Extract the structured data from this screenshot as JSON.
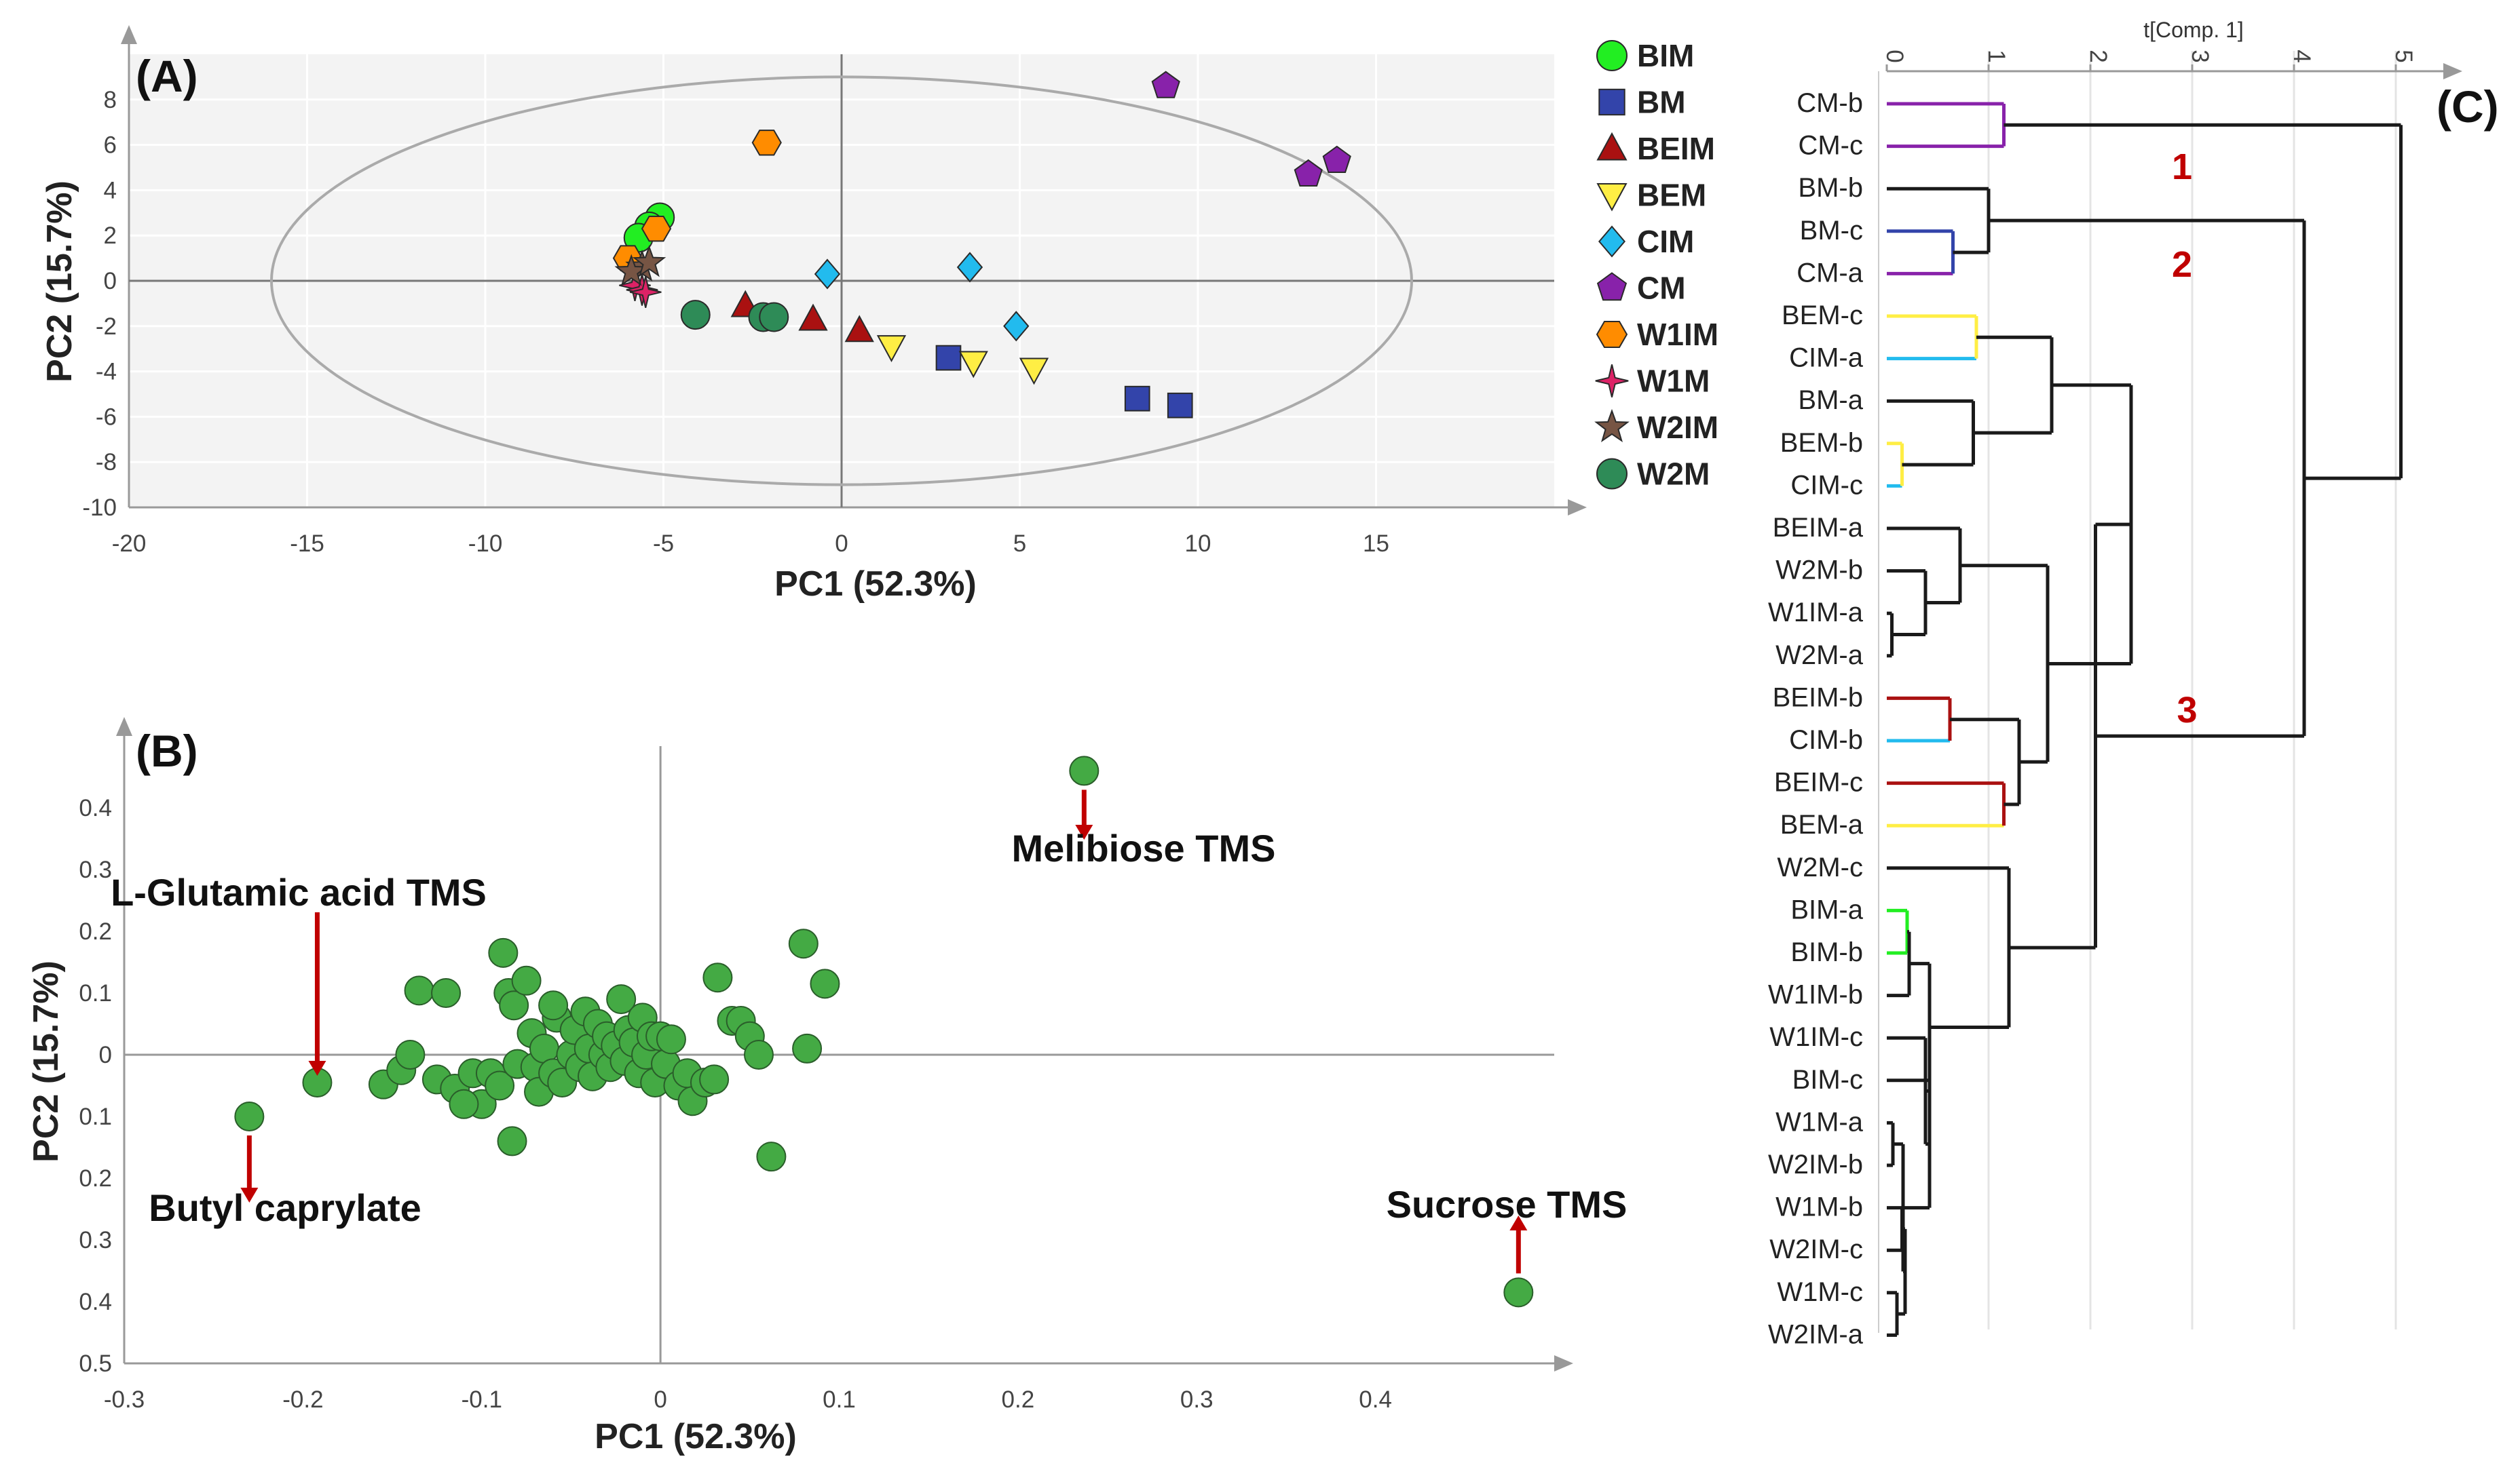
{
  "colors": {
    "BIM": "#22ee22",
    "BM": "#3344aa",
    "BEIM": "#aa1111",
    "BEM": "#ffee44",
    "CIM": "#22bbee",
    "CM": "#8822aa",
    "W1IM": "#ff8c00",
    "W1M": "#dd2266",
    "W2IM": "#775544",
    "W2M": "#2e8b57",
    "loading": "#44aa44",
    "arrow": "#c00000",
    "axis": "#999999"
  },
  "chart_data": [
    {
      "panel_label": "(A)",
      "type": "scatter",
      "xlabel": "PC1 (52.3%)",
      "ylabel": "PC2 (15.7%)",
      "xlim": [
        -20,
        20
      ],
      "ylim": [
        -10,
        10
      ],
      "x_ticks": [
        -20,
        -15,
        -10,
        -5,
        0,
        5,
        10,
        15
      ],
      "x_tick_labels": [
        "-20",
        "-15",
        "-10",
        "-5",
        "0",
        "5",
        "10",
        "15"
      ],
      "y_ticks": [
        -10,
        -8,
        -6,
        -4,
        -2,
        0,
        2,
        4,
        6,
        8
      ],
      "y_tick_labels": [
        "-10",
        "-8",
        "-6",
        "-4",
        "-2",
        "0",
        "2",
        "4",
        "6",
        "8"
      ],
      "ellipse": {
        "cx": 0,
        "cy": 0,
        "rx": 16,
        "ry": 9
      },
      "series": [
        {
          "name": "BIM",
          "marker": "circle",
          "points": [
            [
              -5.1,
              2.8
            ],
            [
              -5.4,
              2.4
            ],
            [
              -5.7,
              1.9
            ]
          ]
        },
        {
          "name": "BM",
          "marker": "square",
          "points": [
            [
              3.0,
              -3.4
            ],
            [
              8.3,
              -5.2
            ],
            [
              9.5,
              -5.5
            ]
          ]
        },
        {
          "name": "BEIM",
          "marker": "triangle-up",
          "points": [
            [
              -2.7,
              -1.1
            ],
            [
              -0.8,
              -1.7
            ],
            [
              0.5,
              -2.2
            ]
          ]
        },
        {
          "name": "BEM",
          "marker": "triangle-down",
          "points": [
            [
              1.4,
              -2.9
            ],
            [
              3.7,
              -3.6
            ],
            [
              5.4,
              -3.9
            ]
          ]
        },
        {
          "name": "CIM",
          "marker": "diamond",
          "points": [
            [
              -0.4,
              0.3
            ],
            [
              3.6,
              0.6
            ],
            [
              4.9,
              -2.0
            ]
          ]
        },
        {
          "name": "CM",
          "marker": "pentagon",
          "points": [
            [
              9.1,
              8.6
            ],
            [
              13.1,
              4.7
            ],
            [
              13.9,
              5.3
            ]
          ]
        },
        {
          "name": "W1IM",
          "marker": "hexagon",
          "points": [
            [
              -2.1,
              6.1
            ],
            [
              -5.2,
              2.3
            ],
            [
              -6.0,
              1.0
            ]
          ]
        },
        {
          "name": "W1M",
          "marker": "star4",
          "points": [
            [
              -5.8,
              -0.2
            ],
            [
              -5.6,
              -0.4
            ],
            [
              -5.5,
              -0.5
            ]
          ]
        },
        {
          "name": "W2IM",
          "marker": "star",
          "points": [
            [
              -5.6,
              0.6
            ],
            [
              -5.9,
              0.4
            ],
            [
              -5.4,
              0.8
            ]
          ]
        },
        {
          "name": "W2M",
          "marker": "circle",
          "points": [
            [
              -4.1,
              -1.5
            ],
            [
              -2.2,
              -1.6
            ],
            [
              -1.9,
              -1.6
            ]
          ]
        }
      ],
      "legend": [
        "BIM",
        "BM",
        "BEIM",
        "BEM",
        "CIM",
        "CM",
        "W1IM",
        "W1M",
        "W2IM",
        "W2M"
      ]
    },
    {
      "panel_label": "(B)",
      "type": "scatter",
      "xlabel": "PC1 (52.3%)",
      "ylabel": "PC2 (15.7%)",
      "xlim": [
        -0.3,
        0.5
      ],
      "ylim": [
        -0.5,
        0.5
      ],
      "x_ticks": [
        -0.3,
        -0.2,
        -0.1,
        0,
        0.1,
        0.2,
        0.3,
        0.4
      ],
      "x_tick_labels": [
        "-0.3",
        "-0.2",
        "-0.1",
        "0",
        "0.1",
        "0.2",
        "0.3",
        "0.4"
      ],
      "y_ticks": [
        0.4,
        0.3,
        0.2,
        0.1,
        0,
        -0.1,
        -0.2,
        -0.3,
        -0.4,
        -0.5
      ],
      "y_tick_labels": [
        "0.4",
        "0.3",
        "0.2",
        "0.1",
        "0",
        "0.1",
        "0.2",
        "0.3",
        "0.4",
        "0.5"
      ],
      "points": [
        [
          -0.23,
          -0.1
        ],
        [
          -0.192,
          -0.045
        ],
        [
          0.237,
          0.46
        ],
        [
          0.48,
          -0.385
        ],
        [
          -0.155,
          -0.048
        ],
        [
          -0.145,
          -0.025
        ],
        [
          -0.14,
          0.0
        ],
        [
          -0.135,
          0.104
        ],
        [
          -0.125,
          -0.04
        ],
        [
          -0.12,
          0.1
        ],
        [
          -0.115,
          -0.055
        ],
        [
          -0.105,
          -0.03
        ],
        [
          -0.1,
          -0.08
        ],
        [
          -0.095,
          -0.03
        ],
        [
          -0.09,
          -0.05
        ],
        [
          -0.088,
          0.165
        ],
        [
          -0.085,
          0.1
        ],
        [
          -0.082,
          0.08
        ],
        [
          -0.08,
          -0.015
        ],
        [
          -0.075,
          0.12
        ],
        [
          -0.072,
          0.035
        ],
        [
          -0.07,
          -0.02
        ],
        [
          -0.068,
          -0.06
        ],
        [
          -0.065,
          0.01
        ],
        [
          -0.06,
          -0.03
        ],
        [
          -0.058,
          0.06
        ],
        [
          -0.055,
          -0.045
        ],
        [
          -0.05,
          0.0
        ],
        [
          -0.048,
          0.04
        ],
        [
          -0.045,
          -0.02
        ],
        [
          -0.042,
          0.07
        ],
        [
          -0.04,
          0.01
        ],
        [
          -0.038,
          -0.035
        ],
        [
          -0.035,
          0.05
        ],
        [
          -0.032,
          0.0
        ],
        [
          -0.03,
          0.03
        ],
        [
          -0.028,
          -0.02
        ],
        [
          -0.025,
          0.015
        ],
        [
          -0.022,
          0.09
        ],
        [
          -0.02,
          -0.01
        ],
        [
          -0.018,
          0.04
        ],
        [
          -0.015,
          0.02
        ],
        [
          -0.012,
          -0.03
        ],
        [
          -0.01,
          0.06
        ],
        [
          -0.008,
          0.0
        ],
        [
          -0.005,
          0.03
        ],
        [
          -0.003,
          -0.045
        ],
        [
          0.0,
          0.03
        ],
        [
          0.003,
          -0.015
        ],
        [
          0.006,
          0.025
        ],
        [
          0.01,
          -0.05
        ],
        [
          0.015,
          -0.03
        ],
        [
          0.018,
          -0.075
        ],
        [
          0.025,
          -0.045
        ],
        [
          0.03,
          -0.04
        ],
        [
          0.032,
          0.125
        ],
        [
          0.04,
          0.055
        ],
        [
          0.045,
          0.055
        ],
        [
          0.05,
          0.03
        ],
        [
          0.055,
          0.0
        ],
        [
          0.062,
          -0.165
        ],
        [
          0.08,
          0.18
        ],
        [
          0.082,
          0.01
        ],
        [
          0.092,
          0.115
        ],
        [
          -0.11,
          -0.08
        ],
        [
          -0.083,
          -0.14
        ],
        [
          -0.06,
          0.08
        ]
      ],
      "annotations": [
        {
          "text": "L-Glutamic acid TMS",
          "target": [
            -0.192,
            -0.045
          ]
        },
        {
          "text": "Melibiose TMS",
          "target": [
            0.237,
            0.46
          ]
        },
        {
          "text": "Butyl caprylate",
          "target": [
            -0.23,
            -0.1
          ]
        },
        {
          "text": "Sucrose TMS",
          "target": [
            0.48,
            -0.385
          ]
        }
      ]
    },
    {
      "panel_label": "(C)",
      "type": "dendrogram",
      "axis_title": "t[Comp. 1]",
      "x_ticks": [
        0,
        1,
        2,
        3,
        4,
        5
      ],
      "x_tick_labels": [
        "0",
        "1",
        "2",
        "3",
        "4",
        "5"
      ],
      "xlim": [
        0,
        5.6
      ],
      "leaves": [
        "CM-b",
        "CM-c",
        "BM-b",
        "BM-c",
        "CM-a",
        "BEM-c",
        "CIM-a",
        "BM-a",
        "BEM-b",
        "CIM-c",
        "BEIM-a",
        "W2M-b",
        "W1IM-a",
        "W2M-a",
        "BEIM-b",
        "CIM-b",
        "BEIM-c",
        "BEM-a",
        "W2M-c",
        "BIM-a",
        "BIM-b",
        "W1IM-b",
        "W1IM-c",
        "BIM-c",
        "W1M-a",
        "W2IM-b",
        "W1M-b",
        "W2IM-c",
        "W1M-c",
        "W2IM-a"
      ],
      "leaf_groups": [
        "CM",
        "CM",
        "BM",
        "BM",
        "CM",
        "BEM",
        "CIM",
        "BM",
        "BEM",
        "CIM",
        "BEIM",
        "W2M",
        "W1IM",
        "W2M",
        "BEIM",
        "CIM",
        "BEIM",
        "BEM",
        "W2M",
        "BIM",
        "BIM",
        "W1IM",
        "W1IM",
        "BIM",
        "W1M",
        "W2IM",
        "W1M",
        "W2IM",
        "W1M",
        "W2IM"
      ],
      "merges": [
        {
          "a": "L0",
          "b": "L1",
          "h": 1.15,
          "colored": true
        },
        {
          "a": "L3",
          "b": "L4",
          "h": 0.65,
          "colored": true
        },
        {
          "a": "L2",
          "b": "M1",
          "h": 1.0
        },
        {
          "a": "L5",
          "b": "L6",
          "h": 0.88,
          "colored": true
        },
        {
          "a": "L8",
          "b": "L9",
          "h": 0.15,
          "colored": true
        },
        {
          "a": "L7",
          "b": "M4",
          "h": 0.85
        },
        {
          "a": "M3",
          "b": "M5",
          "h": 1.62
        },
        {
          "a": "L12",
          "b": "L13",
          "h": 0.05
        },
        {
          "a": "L11",
          "b": "M7",
          "h": 0.38
        },
        {
          "a": "L10",
          "b": "M8",
          "h": 0.72
        },
        {
          "a": "L14",
          "b": "L15",
          "h": 0.62,
          "colored": true
        },
        {
          "a": "L16",
          "b": "L17",
          "h": 1.15,
          "colored": true
        },
        {
          "a": "M10",
          "b": "M11",
          "h": 1.3
        },
        {
          "a": "M9",
          "b": "M12",
          "h": 1.58
        },
        {
          "a": "M6",
          "b": "M13",
          "h": 2.4
        },
        {
          "a": "L19",
          "b": "L20",
          "h": 0.2,
          "colored": true
        },
        {
          "a": "M15",
          "b": "L21",
          "h": 0.22
        },
        {
          "a": "L26",
          "b": "L27",
          "h": 0.15
        },
        {
          "a": "L28",
          "b": "L29",
          "h": 0.1
        },
        {
          "a": "M17",
          "b": "M18",
          "h": 0.18
        },
        {
          "a": "L24",
          "b": "L25",
          "h": 0.06
        },
        {
          "a": "M20",
          "b": "M19",
          "h": 0.16
        },
        {
          "a": "L23",
          "b": "M21",
          "h": 0.42
        },
        {
          "a": "L22",
          "b": "M22",
          "h": 0.38
        },
        {
          "a": "M16",
          "b": "M23",
          "h": 0.42
        },
        {
          "a": "L18",
          "b": "M24",
          "h": 1.2
        },
        {
          "a": "M14",
          "b": "M25",
          "h": 2.05
        },
        {
          "a": "M2",
          "b": "M26",
          "h": 4.1
        },
        {
          "a": "M0",
          "b": "M27",
          "h": 5.05
        }
      ],
      "clusters": [
        {
          "label": "1",
          "near_leaf": 1.5,
          "value": 2.9
        },
        {
          "label": "2",
          "near_leaf": 3.8,
          "value": 2.9
        },
        {
          "label": "3",
          "near_leaf": 14.3,
          "value": 2.95
        }
      ]
    }
  ]
}
